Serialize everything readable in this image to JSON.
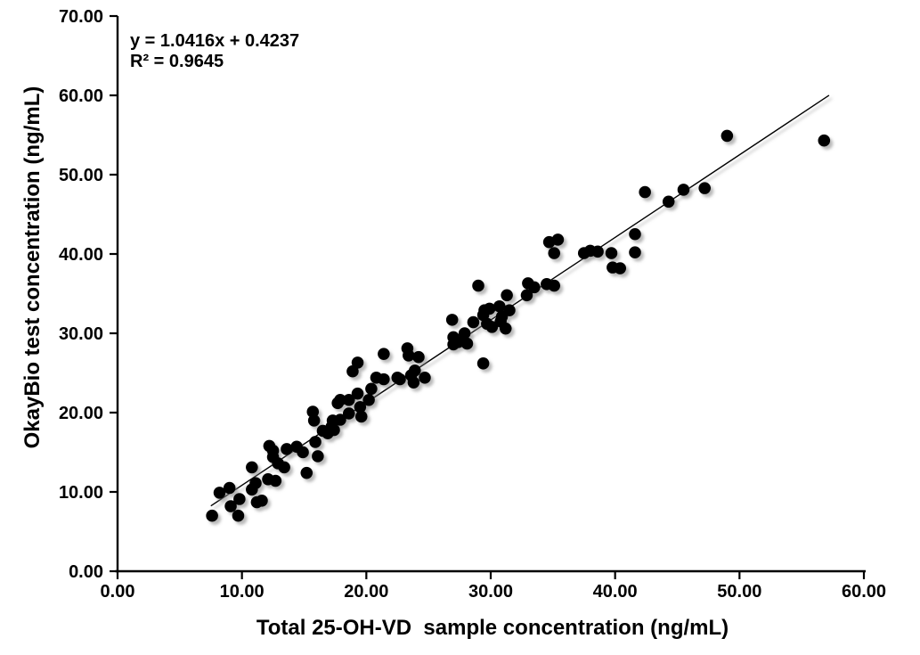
{
  "chart_data": {
    "type": "scatter",
    "title": "",
    "annotation": {
      "line1": "y = 1.0416x + 0.4237",
      "line2": "R² = 0.9645"
    },
    "xlabel": "Total 25-OH-VD  sample concentration (ng/mL)",
    "ylabel": "OkayBio test concentration (ng/mL)",
    "xlim": [
      0,
      60
    ],
    "ylim": [
      0,
      70
    ],
    "x_tick_values": [
      0,
      10,
      20,
      30,
      40,
      50,
      60
    ],
    "x_tick_labels": [
      "0.00",
      "10.00",
      "20.00",
      "30.00",
      "40.00",
      "50.00",
      "60.00"
    ],
    "y_tick_values": [
      0,
      10,
      20,
      30,
      40,
      50,
      60,
      70
    ],
    "y_tick_labels": [
      "0.00",
      "10.00",
      "20.00",
      "30.00",
      "40.00",
      "50.00",
      "60.00",
      "70.00"
    ],
    "grid": false,
    "legend": null,
    "marker_color": "#000000",
    "trendline_color": "#000000",
    "axis_color": "#000000",
    "background_color": "#ffffff",
    "trendline": {
      "slope": 1.0416,
      "intercept": 0.4237,
      "x_start": 7.5,
      "x_end": 57.2
    },
    "points": [
      [
        7.6,
        7.0
      ],
      [
        8.2,
        9.9
      ],
      [
        9.0,
        10.5
      ],
      [
        9.1,
        8.2
      ],
      [
        9.7,
        7.0
      ],
      [
        9.8,
        9.1
      ],
      [
        10.8,
        10.3
      ],
      [
        10.8,
        13.1
      ],
      [
        11.1,
        11.1
      ],
      [
        11.2,
        8.7
      ],
      [
        11.6,
        8.9
      ],
      [
        12.1,
        11.6
      ],
      [
        12.7,
        11.4
      ],
      [
        12.2,
        15.8
      ],
      [
        12.5,
        15.2
      ],
      [
        12.5,
        14.4
      ],
      [
        12.9,
        13.6
      ],
      [
        13.4,
        13.1
      ],
      [
        13.6,
        15.4
      ],
      [
        14.4,
        15.7
      ],
      [
        14.9,
        15.0
      ],
      [
        15.2,
        12.4
      ],
      [
        15.7,
        20.1
      ],
      [
        15.8,
        19.0
      ],
      [
        15.9,
        16.3
      ],
      [
        16.1,
        14.5
      ],
      [
        16.5,
        17.7
      ],
      [
        16.9,
        17.4
      ],
      [
        17.4,
        17.8
      ],
      [
        17.2,
        18.2
      ],
      [
        17.3,
        19.0
      ],
      [
        17.7,
        21.2
      ],
      [
        17.9,
        19.1
      ],
      [
        17.9,
        21.6
      ],
      [
        18.6,
        21.6
      ],
      [
        18.6,
        19.9
      ],
      [
        18.9,
        25.2
      ],
      [
        19.3,
        26.3
      ],
      [
        19.3,
        22.4
      ],
      [
        19.5,
        20.7
      ],
      [
        19.6,
        19.5
      ],
      [
        20.2,
        21.6
      ],
      [
        20.4,
        23.0
      ],
      [
        20.8,
        24.4
      ],
      [
        21.4,
        27.4
      ],
      [
        21.4,
        24.2
      ],
      [
        22.5,
        24.4
      ],
      [
        22.7,
        24.2
      ],
      [
        23.3,
        28.1
      ],
      [
        23.4,
        27.2
      ],
      [
        24.2,
        27.0
      ],
      [
        23.9,
        25.3
      ],
      [
        23.6,
        24.7
      ],
      [
        23.8,
        23.8
      ],
      [
        24.7,
        24.4
      ],
      [
        26.9,
        31.7
      ],
      [
        27.0,
        29.5
      ],
      [
        27.0,
        28.6
      ],
      [
        27.4,
        28.9
      ],
      [
        27.9,
        30.0
      ],
      [
        28.1,
        28.7
      ],
      [
        28.6,
        31.4
      ],
      [
        29.0,
        36.0
      ],
      [
        29.4,
        32.3
      ],
      [
        29.7,
        31.2
      ],
      [
        29.4,
        26.2
      ],
      [
        30.1,
        30.8
      ],
      [
        30.8,
        31.5
      ],
      [
        31.2,
        30.6
      ],
      [
        29.5,
        32.9
      ],
      [
        29.9,
        33.1
      ],
      [
        30.7,
        33.4
      ],
      [
        30.9,
        32.1
      ],
      [
        31.3,
        34.8
      ],
      [
        31.5,
        32.9
      ],
      [
        32.9,
        34.8
      ],
      [
        33.0,
        36.3
      ],
      [
        33.5,
        35.8
      ],
      [
        34.5,
        36.2
      ],
      [
        35.1,
        36.0
      ],
      [
        34.7,
        41.5
      ],
      [
        35.4,
        41.8
      ],
      [
        35.1,
        40.1
      ],
      [
        37.5,
        40.1
      ],
      [
        38.0,
        40.4
      ],
      [
        38.6,
        40.3
      ],
      [
        39.7,
        40.1
      ],
      [
        39.8,
        38.3
      ],
      [
        40.4,
        38.2
      ],
      [
        41.6,
        42.5
      ],
      [
        41.6,
        40.2
      ],
      [
        42.4,
        47.8
      ],
      [
        44.3,
        46.6
      ],
      [
        45.5,
        48.1
      ],
      [
        47.2,
        48.3
      ],
      [
        49.0,
        54.9
      ],
      [
        56.8,
        54.3
      ]
    ]
  }
}
